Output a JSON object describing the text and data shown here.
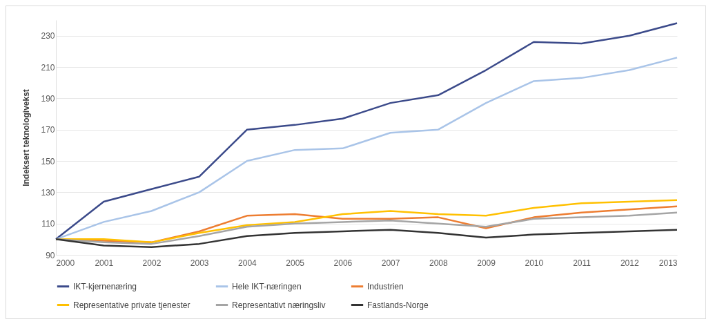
{
  "chart_data": {
    "type": "line",
    "ylabel": "Indeksert teknologivekst",
    "x": [
      2000,
      2001,
      2002,
      2003,
      2004,
      2005,
      2006,
      2007,
      2008,
      2009,
      2010,
      2011,
      2012,
      2013
    ],
    "xlim": [
      2000,
      2013
    ],
    "xticks": [
      2000,
      2001,
      2002,
      2003,
      2004,
      2005,
      2006,
      2007,
      2008,
      2009,
      2010,
      2011,
      2012,
      2013
    ],
    "ylim": [
      90,
      240
    ],
    "yticks": [
      90,
      110,
      130,
      150,
      170,
      190,
      210,
      230
    ],
    "grid": "y",
    "legend": "bottom",
    "line_style": "solid",
    "series": [
      {
        "name": "IKT-kjernenæring",
        "color": "#3b4a8a",
        "values": [
          100,
          124,
          132,
          140,
          170,
          173,
          177,
          187,
          192,
          208,
          226,
          225,
          230,
          238
        ]
      },
      {
        "name": "Hele IKT-næringen",
        "color": "#a9c4e8",
        "values": [
          100,
          111,
          118,
          130,
          150,
          157,
          158,
          168,
          170,
          187,
          201,
          203,
          208,
          216
        ]
      },
      {
        "name": "Industrien",
        "color": "#ed7d31",
        "values": [
          100,
          99,
          98,
          105,
          115,
          116,
          113,
          113,
          114,
          107,
          114,
          117,
          119,
          121
        ]
      },
      {
        "name": "Representative private tjenester",
        "color": "#ffc000",
        "values": [
          100,
          100,
          98,
          104,
          109,
          111,
          116,
          118,
          116,
          115,
          120,
          123,
          124,
          125
        ]
      },
      {
        "name": "Representativt næringsliv",
        "color": "#a5a5a5",
        "values": [
          100,
          98,
          97,
          102,
          108,
          110,
          111,
          112,
          110,
          108,
          113,
          114,
          115,
          117
        ]
      },
      {
        "name": "Fastlands-Norge",
        "color": "#333333",
        "values": [
          100,
          96,
          95,
          97,
          102,
          104,
          105,
          106,
          104,
          101,
          103,
          104,
          105,
          106
        ]
      }
    ]
  }
}
